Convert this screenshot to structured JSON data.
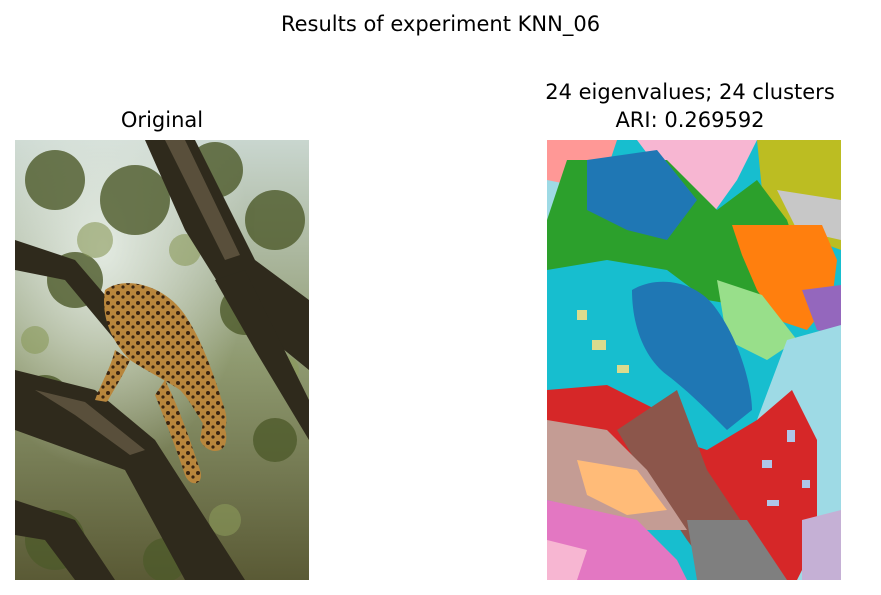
{
  "figure": {
    "title": "Results of experiment KNN_06"
  },
  "panels": {
    "original": {
      "title": "Original",
      "subject": "leopard in tree"
    },
    "segmentation": {
      "title_line1": "24 eigenvalues; 24 clusters",
      "title_line2": "ARI: 0.269592",
      "eigenvalues": 24,
      "clusters": 24,
      "ari": 0.269592
    }
  },
  "colors": {
    "cluster_palette": [
      "#1f77b4",
      "#ff7f0e",
      "#2ca02c",
      "#d62728",
      "#9467bd",
      "#8c564b",
      "#e377c2",
      "#7f7f7f",
      "#bcbd22",
      "#17becf",
      "#aec7e8",
      "#ffbb78",
      "#98df8a",
      "#ff9896",
      "#c5b0d5",
      "#c49c94",
      "#f7b6d2",
      "#c7c7c7",
      "#dbdb8d",
      "#9edae5"
    ]
  }
}
